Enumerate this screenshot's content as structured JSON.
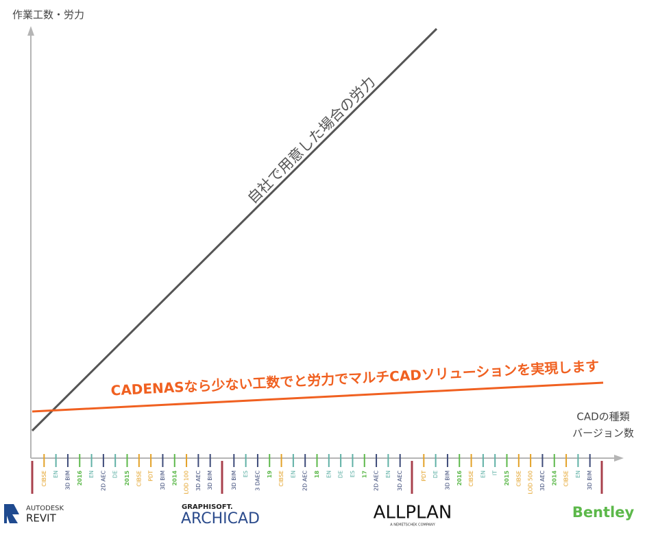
{
  "axes": {
    "y_label": "作業工数・労力",
    "x_label": [
      "CADの種類",
      "バージョン数"
    ]
  },
  "lines": [
    {
      "label": "自社で用意した場合の労力",
      "color": "#555555"
    },
    {
      "label": "CADENASなら少ない工数でと労力でマルチCADソリューションを実現します",
      "color": "#f06020"
    }
  ],
  "separator_color": "#a8404c",
  "groups": [
    {
      "ticks": [
        {
          "label": "CIBSE",
          "color": "#e3a126"
        },
        {
          "label": "EN",
          "color": "#5fb0a5"
        },
        {
          "label": "3D BIM",
          "color": "#3c4a78"
        },
        {
          "label": "2016",
          "color": "#5cb84a"
        },
        {
          "label": "EN",
          "color": "#5fb0a5"
        },
        {
          "label": "2D AEC",
          "color": "#3c4a78"
        },
        {
          "label": "DE",
          "color": "#5fb0a5"
        },
        {
          "label": "2015",
          "color": "#5cb84a"
        },
        {
          "label": "CIBSE",
          "color": "#e3a126"
        },
        {
          "label": "PDT",
          "color": "#e3a126"
        },
        {
          "label": "3D BIM",
          "color": "#3c4a78"
        },
        {
          "label": "2014",
          "color": "#5cb84a"
        },
        {
          "label": "LOD 100",
          "color": "#e3a126"
        },
        {
          "label": "3D AEC",
          "color": "#3c4a78"
        },
        {
          "label": "3D BIM",
          "color": "#3c4a78"
        }
      ]
    },
    {
      "ticks": [
        {
          "label": "3D BIM",
          "color": "#3c4a78"
        },
        {
          "label": "ES",
          "color": "#5fb0a5"
        },
        {
          "label": "3 DAEC",
          "color": "#3c4a78"
        },
        {
          "label": "19",
          "color": "#5cb84a"
        },
        {
          "label": "CIBSE",
          "color": "#e3a126"
        },
        {
          "label": "EN",
          "color": "#5fb0a5"
        },
        {
          "label": "2D AEC",
          "color": "#3c4a78"
        },
        {
          "label": "18",
          "color": "#5cb84a"
        },
        {
          "label": "EN",
          "color": "#5fb0a5"
        },
        {
          "label": "DE",
          "color": "#5fb0a5"
        },
        {
          "label": "ES",
          "color": "#5fb0a5"
        },
        {
          "label": "17",
          "color": "#5cb84a"
        },
        {
          "label": "2D AEC",
          "color": "#3c4a78"
        },
        {
          "label": "EN",
          "color": "#5fb0a5"
        },
        {
          "label": "3D AEC",
          "color": "#3c4a78"
        }
      ]
    },
    {
      "ticks": [
        {
          "label": "PDT",
          "color": "#e3a126"
        },
        {
          "label": "DE",
          "color": "#5fb0a5"
        },
        {
          "label": "3D BIM",
          "color": "#3c4a78"
        },
        {
          "label": "2016",
          "color": "#5cb84a"
        },
        {
          "label": "CIBSE",
          "color": "#e3a126"
        },
        {
          "label": "EN",
          "color": "#5fb0a5"
        },
        {
          "label": "IT",
          "color": "#5fb0a5"
        },
        {
          "label": "2015",
          "color": "#5cb84a"
        },
        {
          "label": "CIBSE",
          "color": "#e3a126"
        },
        {
          "label": "LOD 500",
          "color": "#e3a126"
        },
        {
          "label": "3D AEC",
          "color": "#3c4a78"
        },
        {
          "label": "2014",
          "color": "#5cb84a"
        },
        {
          "label": "CIBSE",
          "color": "#e3a126"
        },
        {
          "label": "EN",
          "color": "#5fb0a5"
        },
        {
          "label": "3D BIM",
          "color": "#3c4a78"
        }
      ]
    }
  ],
  "logos": {
    "revit": {
      "top": "AUTODESK",
      "main": "REVIT"
    },
    "archicad": {
      "top": "GRAPHISOFT.",
      "main": "ARCHICAD"
    },
    "allplan": {
      "main": "ALLPLAN",
      "sub": "A NEMETSCHEK COMPANY"
    },
    "bentley": {
      "main": "Bentley"
    }
  }
}
